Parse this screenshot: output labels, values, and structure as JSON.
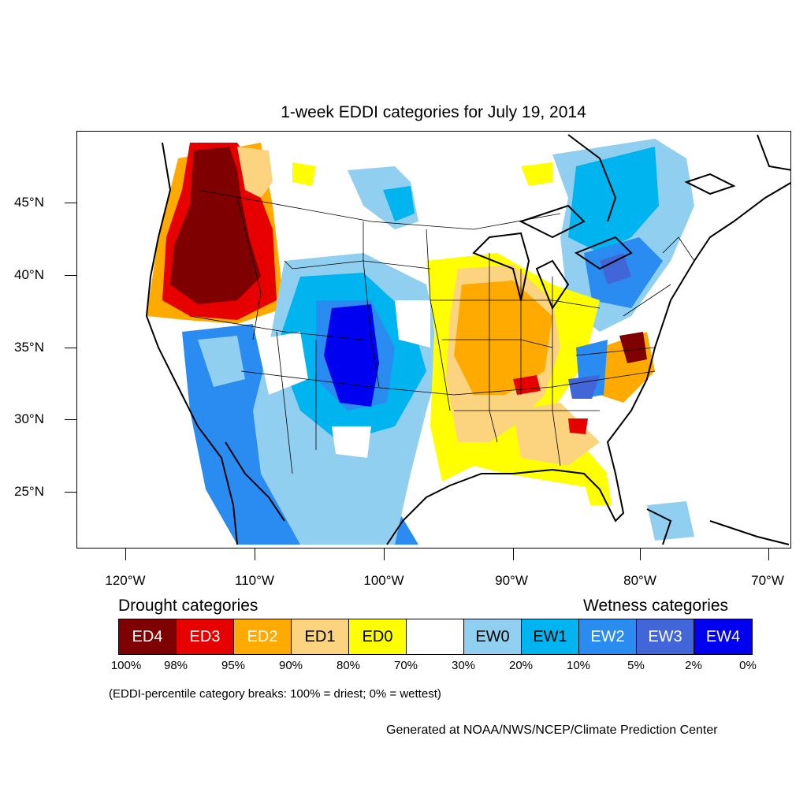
{
  "title": "1-week EDDI categories for July 19, 2014",
  "lat_labels": [
    "45°N",
    "40°N",
    "35°N",
    "30°N",
    "25°N"
  ],
  "lon_labels": [
    "120°W",
    "110°W",
    "100°W",
    "90°W",
    "80°W",
    "70°W"
  ],
  "legend": {
    "drought_heading": "Drought categories",
    "wetness_heading": "Wetness categories",
    "categories": [
      {
        "label": "ED4",
        "color": "#7f0000",
        "text_color": "#ffffff"
      },
      {
        "label": "ED3",
        "color": "#e60000",
        "text_color": "#ffffff"
      },
      {
        "label": "ED2",
        "color": "#ffaa00",
        "text_color": "#ffffff"
      },
      {
        "label": "ED1",
        "color": "#fcd37f",
        "text_color": "#000000"
      },
      {
        "label": "ED0",
        "color": "#ffff00",
        "text_color": "#000000"
      },
      {
        "label": "",
        "color": "#ffffff",
        "text_color": "#000000"
      },
      {
        "label": "EW0",
        "color": "#90cfef",
        "text_color": "#000000"
      },
      {
        "label": "EW1",
        "color": "#00b4f0",
        "text_color": "#000000"
      },
      {
        "label": "EW2",
        "color": "#2a8cf0",
        "text_color": "#ffffff"
      },
      {
        "label": "EW3",
        "color": "#4266d8",
        "text_color": "#ffffff"
      },
      {
        "label": "EW4",
        "color": "#0000f0",
        "text_color": "#ffffff"
      }
    ],
    "percent_breaks": [
      "100%",
      "98%",
      "95%",
      "90%",
      "80%",
      "70%",
      "30%",
      "20%",
      "10%",
      "5%",
      "2%",
      "0%"
    ]
  },
  "note": "(EDDI-percentile category breaks: 100% = driest; 0% = wettest)",
  "credit": "Generated at NOAA/NWS/NCEP/Climate Prediction Center"
}
